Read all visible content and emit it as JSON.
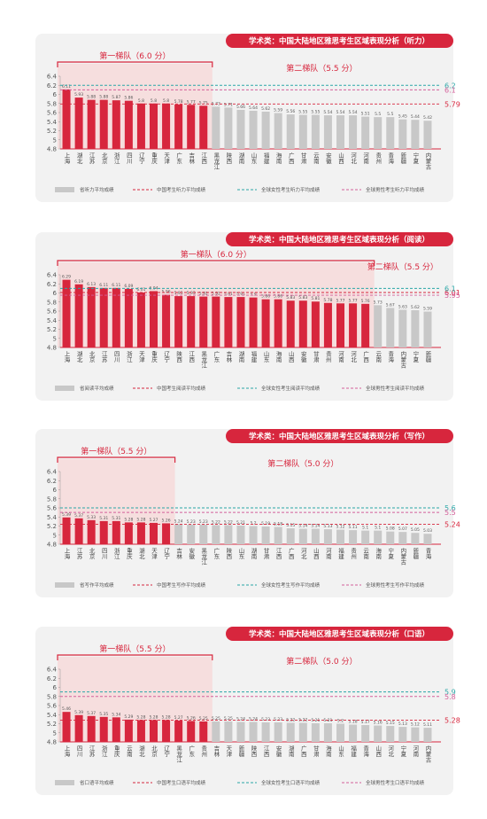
{
  "chart_data": [
    {
      "type": "bar",
      "title": "学术类：中国大陆地区雅思考生区域表现分析（听力）",
      "legend_label": "省听力平均成绩",
      "categories": [
        "上海",
        "湖北",
        "江苏",
        "北京",
        "浙江",
        "四川",
        "辽宁",
        "重庆",
        "天津",
        "广东",
        "吉林",
        "江西",
        "黑龙江",
        "陕西",
        "湖南",
        "山东",
        "福建",
        "海南",
        "广西",
        "甘肃",
        "云南",
        "安徽",
        "山西",
        "河北",
        "河南",
        "贵州",
        "青海",
        "新疆",
        "宁夏",
        "内蒙古"
      ],
      "series": [
        {
          "name": "第一梯队（6.0 分）",
          "color": "#d7263d",
          "values": [
            6.11,
            5.93,
            5.88,
            5.88,
            5.87,
            5.86,
            5.8,
            5.8,
            5.8,
            5.78,
            5.77,
            5.75,
            null,
            null,
            null,
            null,
            null,
            null,
            null,
            null,
            null,
            null,
            null,
            null,
            null,
            null,
            null,
            null,
            null,
            null
          ]
        },
        {
          "name": "第二梯队（5.5 分）",
          "color": "#c8c8c8",
          "values": [
            null,
            null,
            null,
            null,
            null,
            null,
            null,
            null,
            null,
            null,
            null,
            null,
            5.73,
            5.71,
            5.66,
            5.64,
            5.62,
            5.59,
            5.56,
            5.55,
            5.55,
            5.54,
            5.54,
            5.54,
            5.51,
            5.5,
            5.5,
            5.45,
            5.44,
            5.42
          ]
        }
      ],
      "reference_lines": [
        {
          "name": "中国考生听力平均成绩",
          "value": 5.79,
          "color": "#d7263d"
        },
        {
          "name": "全球女性考生听力平均成绩",
          "value": 6.2,
          "color": "#2aa7a7"
        },
        {
          "name": "全球男性考生听力平均成绩",
          "value": 6.1,
          "color": "#d4609a"
        }
      ],
      "ylim": [
        4.8,
        6.4
      ],
      "yticks": [
        4.8,
        5.0,
        5.2,
        5.4,
        5.6,
        5.8,
        6.0,
        6.2,
        6.4
      ]
    },
    {
      "type": "bar",
      "title": "学术类：中国大陆地区雅思考生区域表现分析（阅读）",
      "legend_label": "省阅读平均成绩",
      "categories": [
        "上海",
        "湖北",
        "北京",
        "江苏",
        "四川",
        "浙江",
        "天津",
        "重庆",
        "辽宁",
        "陕西",
        "江西",
        "黑龙江",
        "广东",
        "吉林",
        "湖南",
        "福建",
        "山东",
        "海南",
        "山西",
        "安徽",
        "甘肃",
        "贵州",
        "河南",
        "河北",
        "广西",
        "云南",
        "青海",
        "内蒙古",
        "宁夏",
        "新疆"
      ],
      "series": [
        {
          "name": "第一梯队（6.0 分）",
          "color": "#d7263d",
          "values": [
            6.29,
            6.19,
            6.13,
            6.11,
            6.11,
            6.09,
            6.01,
            6.04,
            5.96,
            5.93,
            5.93,
            5.92,
            5.92,
            5.91,
            5.91,
            5.9,
            5.86,
            5.86,
            5.83,
            5.83,
            5.81,
            5.78,
            5.77,
            5.77,
            5.76,
            null,
            null,
            null,
            null,
            null
          ]
        },
        {
          "name": "第二梯队（5.5 分）",
          "color": "#c8c8c8",
          "values": [
            null,
            null,
            null,
            null,
            null,
            null,
            null,
            null,
            null,
            null,
            null,
            null,
            null,
            null,
            null,
            null,
            null,
            null,
            null,
            null,
            null,
            null,
            null,
            null,
            null,
            5.73,
            5.67,
            5.63,
            5.62,
            5.59
          ]
        }
      ],
      "reference_lines": [
        {
          "name": "中国考生阅读平均成绩",
          "value": 6.01,
          "color": "#d7263d"
        },
        {
          "name": "全球女性考生阅读平均成绩",
          "value": 6.1,
          "color": "#2aa7a7"
        },
        {
          "name": "全球男性考生阅读平均成绩",
          "value": 5.95,
          "color": "#d4609a"
        }
      ],
      "ylim": [
        4.8,
        6.4
      ],
      "yticks": [
        4.8,
        5.0,
        5.2,
        5.4,
        5.6,
        5.8,
        6.0,
        6.2,
        6.4
      ]
    },
    {
      "type": "bar",
      "title": "学术类：中国大陆地区雅思考生区域表现分析（写作）",
      "legend_label": "省写作平均成绩",
      "categories": [
        "上海",
        "江苏",
        "北京",
        "四川",
        "浙江",
        "重庆",
        "湖北",
        "天津",
        "辽宁",
        "吉林",
        "安徽",
        "黑龙江",
        "广东",
        "陕西",
        "山东",
        "湖南",
        "甘肃",
        "江西",
        "广西",
        "河北",
        "山西",
        "河南",
        "福建",
        "贵州",
        "云南",
        "海南",
        "宁夏",
        "内蒙古",
        "新疆",
        "青海"
      ],
      "series": [
        {
          "name": "第一梯队（5.5 分）",
          "color": "#d7263d",
          "values": [
            5.39,
            5.37,
            5.33,
            5.31,
            5.31,
            5.28,
            5.28,
            5.27,
            5.26,
            null,
            null,
            null,
            null,
            null,
            null,
            null,
            null,
            null,
            null,
            null,
            null,
            null,
            null,
            null,
            null,
            null,
            null,
            null,
            null,
            null
          ]
        },
        {
          "name": "第二梯队（5.0 分）",
          "color": "#c8c8c8",
          "values": [
            null,
            null,
            null,
            null,
            null,
            null,
            null,
            null,
            null,
            5.24,
            5.23,
            5.23,
            5.22,
            5.22,
            5.21,
            5.2,
            5.19,
            5.18,
            5.15,
            5.14,
            5.14,
            5.13,
            5.12,
            5.11,
            5.1,
            5.1,
            5.08,
            5.07,
            5.05,
            5.03
          ]
        }
      ],
      "reference_lines": [
        {
          "name": "中国考生写作平均成绩",
          "value": 5.24,
          "color": "#d7263d"
        },
        {
          "name": "全球女性考生写作平均成绩",
          "value": 5.6,
          "color": "#2aa7a7"
        },
        {
          "name": "全球男性考生写作平均成绩",
          "value": 5.5,
          "color": "#d4609a"
        }
      ],
      "ylim": [
        4.8,
        6.4
      ],
      "yticks": [
        4.8,
        5.0,
        5.2,
        5.4,
        5.6,
        5.8,
        6.0,
        6.2,
        6.4
      ]
    },
    {
      "type": "bar",
      "title": "学术类：中国大陆地区雅思考生区域表现分析（口语）",
      "legend_label": "省口语平均成绩",
      "categories": [
        "上海",
        "四川",
        "江苏",
        "浙江",
        "重庆",
        "云南",
        "湖北",
        "北京",
        "辽宁",
        "黑龙江",
        "广东",
        "贵州",
        "吉林",
        "天津",
        "新疆",
        "陕西",
        "江西",
        "安徽",
        "湖南",
        "广西",
        "甘肃",
        "海南",
        "山东",
        "福建",
        "青海",
        "山西",
        "河北",
        "宁夏",
        "河南",
        "内蒙古"
      ],
      "series": [
        {
          "name": "第一梯队（5.5 分）",
          "color": "#d7263d",
          "values": [
            5.46,
            5.39,
            5.37,
            5.35,
            5.34,
            5.29,
            5.28,
            5.28,
            5.28,
            5.27,
            5.26,
            5.25,
            null,
            null,
            null,
            null,
            null,
            null,
            null,
            null,
            null,
            null,
            null,
            null,
            null,
            null,
            null,
            null,
            null,
            null
          ]
        },
        {
          "name": "第二梯队（5.0 分）",
          "color": "#c8c8c8",
          "values": [
            null,
            null,
            null,
            null,
            null,
            null,
            null,
            null,
            null,
            null,
            null,
            null,
            5.25,
            5.25,
            5.24,
            5.24,
            5.23,
            5.23,
            5.22,
            5.22,
            5.21,
            5.21,
            5.2,
            5.18,
            5.17,
            5.16,
            5.15,
            5.13,
            5.12,
            5.11
          ]
        }
      ],
      "reference_lines": [
        {
          "name": "中国考生口语平均成绩",
          "value": 5.28,
          "color": "#d7263d"
        },
        {
          "name": "全球女性考生口语平均成绩",
          "value": 5.9,
          "color": "#2aa7a7"
        },
        {
          "name": "全球男性考生口语平均成绩",
          "value": 5.8,
          "color": "#d4609a"
        }
      ],
      "ylim": [
        4.8,
        6.4
      ],
      "yticks": [
        4.8,
        5.0,
        5.2,
        5.4,
        5.6,
        5.8,
        6.0,
        6.2,
        6.4
      ]
    }
  ]
}
